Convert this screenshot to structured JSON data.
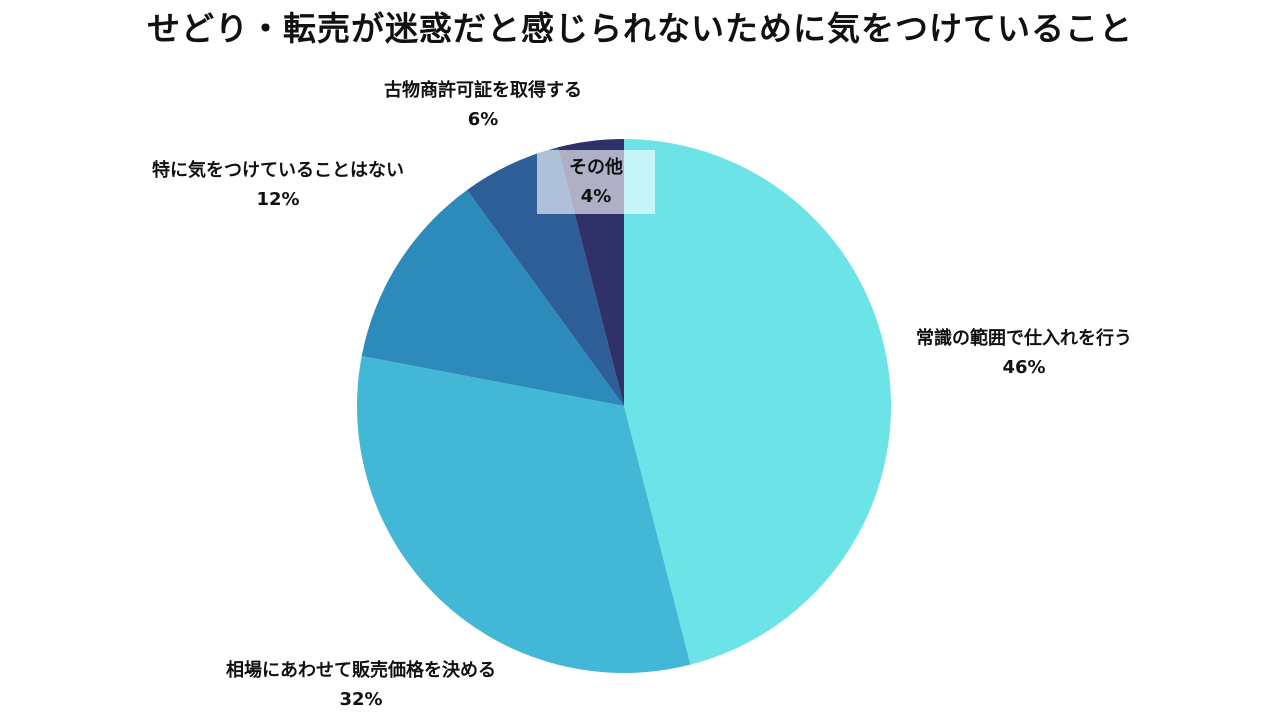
{
  "chart_data": {
    "type": "pie",
    "title": "せどり・転売が迷惑だと感じられないために気をつけていること",
    "slices": [
      {
        "label": "常識の範囲で仕入れを行う",
        "value": 46,
        "value_label": "46%",
        "color": "#6ce3e7"
      },
      {
        "label": "相場にあわせて販売価格を決める",
        "value": 32,
        "value_label": "32%",
        "color": "#43b8d6"
      },
      {
        "label": "特に気をつけていることはない",
        "value": 12,
        "value_label": "12%",
        "color": "#2d8bbb"
      },
      {
        "label": "古物商許可証を取得する",
        "value": 6,
        "value_label": "6%",
        "color": "#2d5e98"
      },
      {
        "label": "その他",
        "value": 4,
        "value_label": "4%",
        "color": "#2f3168"
      }
    ],
    "start_angle": "12 o'clock",
    "direction": "clockwise",
    "legend": "none (labels beside slices)"
  }
}
